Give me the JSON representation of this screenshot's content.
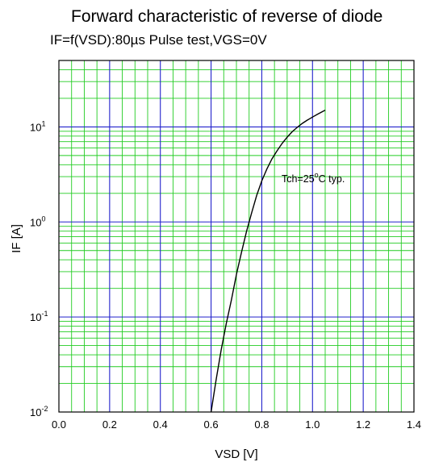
{
  "chart_data": {
    "type": "line",
    "title": "Forward characteristic of reverse of diode",
    "subtitle": "IF=f(VSD):80µs Pulse test,VGS=0V",
    "xlabel": "VSD [V]",
    "ylabel": "IF [A]",
    "xlim": [
      0.0,
      1.4
    ],
    "ylim": [
      0.01,
      50
    ],
    "yscale": "log",
    "x_ticks": [
      "0.0",
      "0.2",
      "0.4",
      "0.6",
      "0.8",
      "1.0",
      "1.2",
      "1.4"
    ],
    "y_ticks": [
      {
        "base": "10",
        "exp": "-2",
        "value": 0.01
      },
      {
        "base": "10",
        "exp": "-1",
        "value": 0.1
      },
      {
        "base": "10",
        "exp": "0",
        "value": 1
      },
      {
        "base": "10",
        "exp": "1",
        "value": 10
      }
    ],
    "grid": true,
    "colors": {
      "major_grid": "#2222cc",
      "minor_grid": "#22cc22",
      "curve": "#000000"
    },
    "series": [
      {
        "x": [
          0.6,
          0.62,
          0.64,
          0.66,
          0.68,
          0.7,
          0.72,
          0.74,
          0.76,
          0.78,
          0.8,
          0.82,
          0.84,
          0.86,
          0.88,
          0.9,
          0.92,
          0.94,
          0.96,
          0.98,
          1.0,
          1.02,
          1.05
        ],
        "y": [
          0.01,
          0.022,
          0.045,
          0.085,
          0.15,
          0.28,
          0.48,
          0.8,
          1.25,
          1.9,
          2.7,
          3.6,
          4.6,
          5.6,
          6.7,
          7.8,
          8.9,
          9.9,
          10.9,
          11.8,
          12.7,
          13.6,
          15
        ]
      }
    ],
    "annotations": [
      {
        "text": "Tch=25",
        "sup": "o",
        "text2": "C typ."
      }
    ]
  }
}
